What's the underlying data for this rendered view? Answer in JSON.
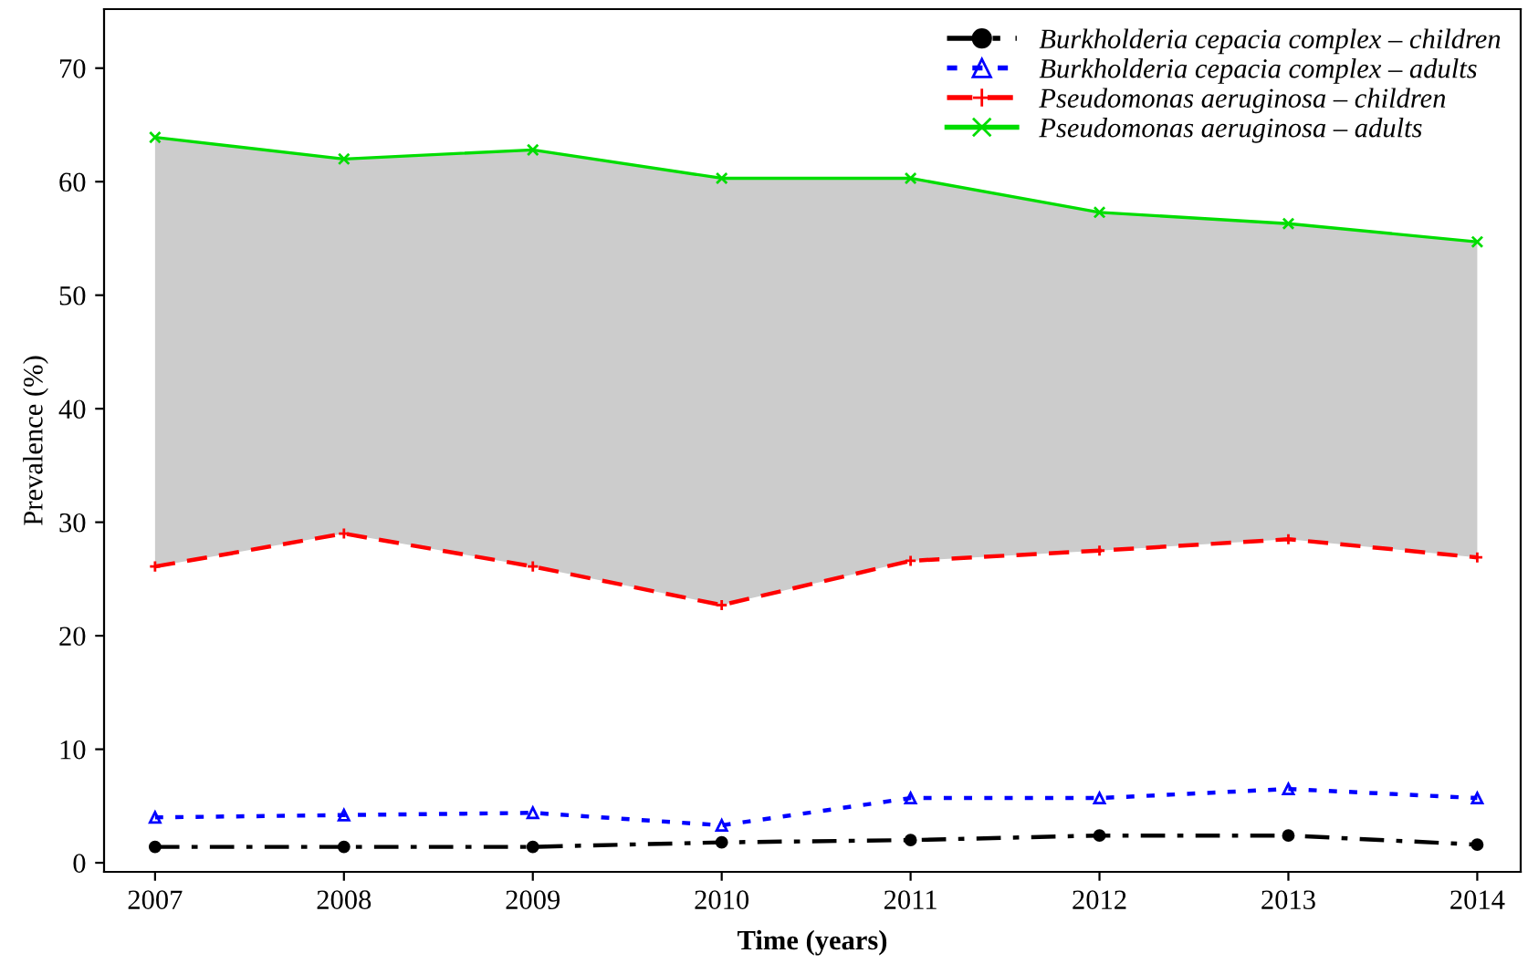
{
  "chart_data": {
    "type": "line",
    "xlabel": "Time (years)",
    "ylabel": "Prevalence (%)",
    "x": [
      2007,
      2008,
      2009,
      2010,
      2011,
      2012,
      2013,
      2014
    ],
    "xlim": [
      2006.73,
      2014.23
    ],
    "xticks": [
      2007,
      2008,
      2009,
      2010,
      2011,
      2012,
      2013,
      2014
    ],
    "ylim": [
      -0.8,
      75.2
    ],
    "yticks": [
      0,
      10,
      20,
      30,
      40,
      50,
      60,
      70
    ],
    "grid": false,
    "legend": "top right",
    "series": [
      {
        "name": "Burkholderia cepacia complex – children",
        "color": "#000000",
        "marker": "circle",
        "line_style": "dashdot",
        "values": [
          1.4,
          1.4,
          1.4,
          1.8,
          2.0,
          2.4,
          2.4,
          1.6
        ]
      },
      {
        "name": "Burkholderia cepacia complex – adults",
        "color": "#0000ff",
        "marker": "triangle",
        "line_style": "dotted",
        "values": [
          4.0,
          4.2,
          4.4,
          3.3,
          5.7,
          5.7,
          6.5,
          5.7
        ]
      },
      {
        "name": "Pseudomonas aeruginosa – children",
        "color": "#ff0000",
        "marker": "plus",
        "line_style": "dashed",
        "values": [
          26.1,
          29.0,
          26.1,
          22.7,
          26.6,
          27.5,
          28.5,
          26.9
        ]
      },
      {
        "name": "Pseudomonas aeruginosa – adults",
        "color": "#00dd00",
        "marker": "cross",
        "line_style": "solid",
        "values": [
          63.9,
          62.0,
          62.8,
          60.3,
          60.3,
          57.3,
          56.3,
          54.7
        ],
        "lower": [
          26.1,
          29.0,
          26.1,
          22.7,
          26.6,
          27.5,
          28.5,
          26.9
        ],
        "upper": [
          63.9,
          62.0,
          62.8,
          60.3,
          60.3,
          57.3,
          56.3,
          54.7
        ]
      }
    ]
  }
}
